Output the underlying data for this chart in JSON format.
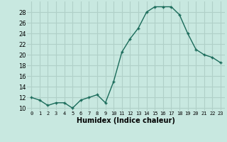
{
  "x": [
    0,
    1,
    2,
    3,
    4,
    5,
    6,
    7,
    8,
    9,
    10,
    11,
    12,
    13,
    14,
    15,
    16,
    17,
    18,
    19,
    20,
    21,
    22,
    23
  ],
  "y": [
    12,
    11.5,
    10.5,
    11,
    11,
    10,
    11.5,
    12,
    12.5,
    11,
    15,
    20.5,
    23,
    25,
    28,
    29,
    29,
    29,
    27.5,
    24,
    21,
    20,
    19.5,
    18.5
  ],
  "line_color": "#1a6b5a",
  "marker": "+",
  "marker_size": 3.5,
  "marker_lw": 1.0,
  "line_width": 1.0,
  "bg_color": "#c8e8e0",
  "grid_color": "#b0d0c8",
  "xlabel": "Humidex (Indice chaleur)",
  "xlabel_fontsize": 7,
  "ytick_fontsize": 6,
  "xtick_fontsize": 5,
  "ylabel_ticks": [
    10,
    12,
    14,
    16,
    18,
    20,
    22,
    24,
    26,
    28
  ],
  "xlim": [
    -0.5,
    23.5
  ],
  "ylim": [
    9.5,
    30.0
  ],
  "xtick_labels": [
    "0",
    "1",
    "2",
    "3",
    "4",
    "5",
    "6",
    "7",
    "8",
    "9",
    "10",
    "11",
    "12",
    "13",
    "14",
    "15",
    "16",
    "17",
    "18",
    "19",
    "20",
    "21",
    "22",
    "23"
  ]
}
